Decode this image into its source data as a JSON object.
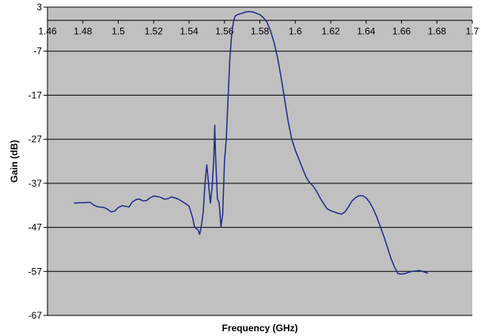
{
  "chart_data": {
    "type": "line",
    "title": "",
    "xlabel": "Frequency (GHz)",
    "ylabel": "Gain (dB)",
    "xlim": [
      1.46,
      1.7
    ],
    "ylim": [
      -67,
      3
    ],
    "x_ticks": [
      1.46,
      1.48,
      1.5,
      1.52,
      1.54,
      1.56,
      1.58,
      1.6,
      1.62,
      1.64,
      1.66,
      1.68,
      1.7
    ],
    "x_tick_labels": [
      "1.46",
      "1.48",
      "1.5",
      "1.52",
      "1.54",
      "1.56",
      "1.58",
      "1.6",
      "1.62",
      "1.64",
      "1.66",
      "1.68",
      "1.7"
    ],
    "y_ticks": [
      3,
      -7,
      -17,
      -27,
      -37,
      -47,
      -57,
      -67
    ],
    "y_tick_labels": [
      "3",
      "-7",
      "-17",
      "-27",
      "-37",
      "-47",
      "-57",
      "-67"
    ],
    "grid": "horizontal",
    "x_axis_position": "y=0",
    "plot_background": "#c0c0c0",
    "line_color": "#1f2a8a",
    "grid_color": "#000000",
    "series": [
      {
        "x": [
          1.475,
          1.478,
          1.481,
          1.484,
          1.486,
          1.488,
          1.49,
          1.492,
          1.494,
          1.496,
          1.498,
          1.5,
          1.502,
          1.504,
          1.506,
          1.508,
          1.51,
          1.512,
          1.514,
          1.516,
          1.518,
          1.52,
          1.522,
          1.524,
          1.526,
          1.528,
          1.53,
          1.532,
          1.534,
          1.536,
          1.538,
          1.54,
          1.541,
          1.542,
          1.543,
          1.544,
          1.545,
          1.546,
          1.547,
          1.548,
          1.549,
          1.55,
          1.551,
          1.552,
          1.553,
          1.554,
          1.5545,
          1.555,
          1.556,
          1.557,
          1.558,
          1.559,
          1.56,
          1.561,
          1.562,
          1.563,
          1.564,
          1.565,
          1.566,
          1.568,
          1.57,
          1.572,
          1.574,
          1.576,
          1.578,
          1.58,
          1.582,
          1.584,
          1.585,
          1.586,
          1.588,
          1.59,
          1.592,
          1.594,
          1.596,
          1.598,
          1.6,
          1.602,
          1.604,
          1.606,
          1.608,
          1.61,
          1.612,
          1.614,
          1.616,
          1.618,
          1.62,
          1.622,
          1.624,
          1.626,
          1.628,
          1.63,
          1.632,
          1.634,
          1.636,
          1.638,
          1.64,
          1.642,
          1.644,
          1.646,
          1.648,
          1.65,
          1.652,
          1.654,
          1.656,
          1.658,
          1.66,
          1.662,
          1.664,
          1.666,
          1.668,
          1.67,
          1.672,
          1.674,
          1.675
        ],
        "y": [
          -41.5,
          -41.4,
          -41.4,
          -41.3,
          -41.9,
          -42.3,
          -42.4,
          -42.5,
          -42.9,
          -43.5,
          -43.3,
          -42.5,
          -42.1,
          -42.2,
          -42.4,
          -41.2,
          -40.7,
          -40.6,
          -41.0,
          -40.9,
          -40.3,
          -39.9,
          -40.0,
          -40.2,
          -40.6,
          -40.5,
          -40.1,
          -40.3,
          -40.6,
          -41.1,
          -41.6,
          -42.2,
          -43.5,
          -44.8,
          -46.8,
          -47.3,
          -47.5,
          -48.6,
          -46.5,
          -43.5,
          -37.0,
          -32.8,
          -37.0,
          -41.5,
          -38.0,
          -31.0,
          -23.8,
          -31.0,
          -40.5,
          -41.5,
          -46.8,
          -44.0,
          -32.0,
          -27.0,
          -18.0,
          -9.0,
          -3.5,
          -0.5,
          1.0,
          1.4,
          1.6,
          1.9,
          2.0,
          1.9,
          1.6,
          1.3,
          0.6,
          -0.4,
          -1.4,
          -2.4,
          -5.0,
          -8.5,
          -13.0,
          -18.0,
          -23.0,
          -27.0,
          -29.5,
          -31.5,
          -33.5,
          -35.5,
          -36.8,
          -37.6,
          -38.8,
          -40.3,
          -41.6,
          -42.8,
          -43.2,
          -43.5,
          -43.8,
          -44.0,
          -43.5,
          -42.4,
          -41.0,
          -40.3,
          -39.8,
          -39.8,
          -40.3,
          -41.3,
          -42.8,
          -44.6,
          -46.8,
          -49.0,
          -51.5,
          -54.0,
          -56.0,
          -57.5,
          -57.6,
          -57.5,
          -57.2,
          -57.0,
          -56.9,
          -56.8,
          -57.0,
          -57.3,
          -57.4
        ]
      }
    ]
  }
}
